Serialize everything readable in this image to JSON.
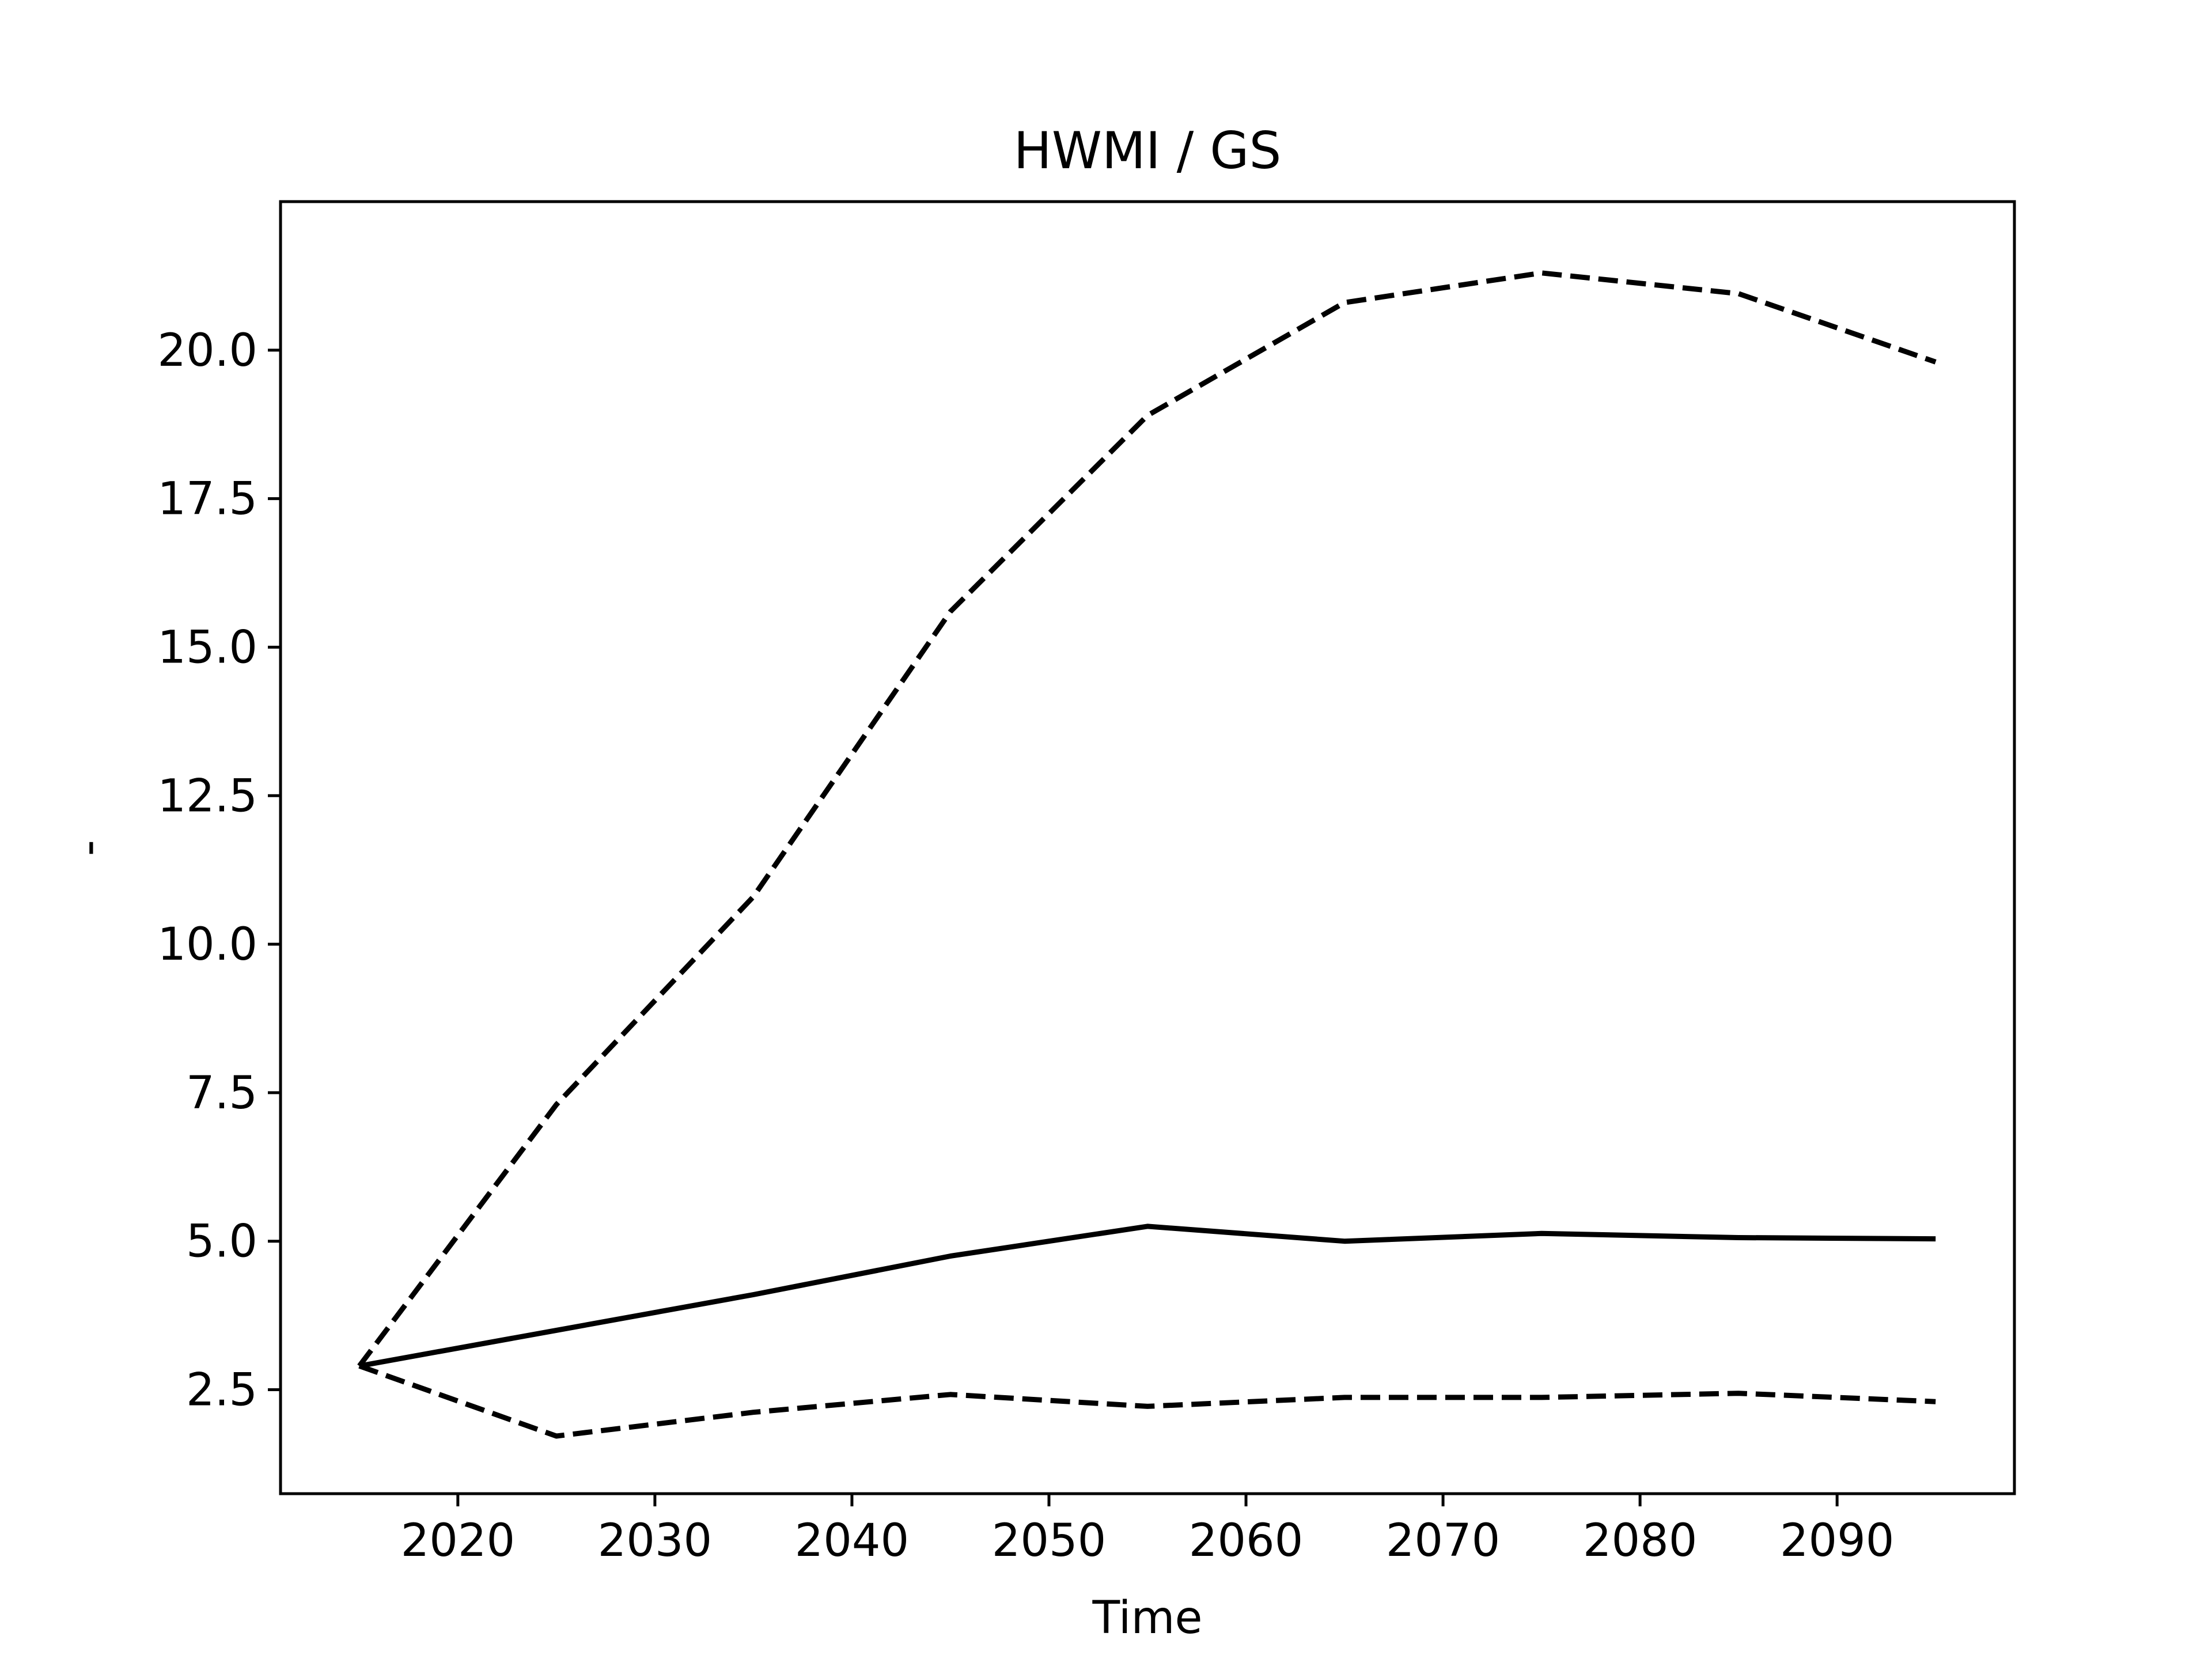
{
  "chart_data": {
    "type": "line",
    "title": "HWMI / GS",
    "xlabel": "Time",
    "ylabel": "-",
    "xlim": [
      2011,
      2099
    ],
    "ylim": [
      0.75,
      22.5
    ],
    "xticks": [
      2020,
      2030,
      2040,
      2050,
      2060,
      2070,
      2080,
      2090
    ],
    "yticks": [
      2.5,
      5.0,
      7.5,
      10.0,
      12.5,
      15.0,
      17.5,
      20.0
    ],
    "ytick_labels": [
      "2.5",
      "5.0",
      "7.5",
      "10.0",
      "12.5",
      "15.0",
      "17.5",
      "20.0"
    ],
    "grid": false,
    "legend": "none",
    "x": [
      2015,
      2025,
      2035,
      2045,
      2055,
      2065,
      2075,
      2085,
      2095
    ],
    "series": [
      {
        "style": "solid",
        "color": "#000000",
        "values": [
          2.9,
          3.5,
          4.1,
          4.75,
          5.25,
          5.0,
          5.13,
          5.06,
          5.04
        ]
      },
      {
        "style": "dashed",
        "color": "#000000",
        "values": [
          2.9,
          7.3,
          10.8,
          15.6,
          18.9,
          20.8,
          21.3,
          20.95,
          19.8
        ]
      },
      {
        "style": "dashed",
        "color": "#000000",
        "values": [
          2.9,
          1.72,
          2.12,
          2.42,
          2.22,
          2.37,
          2.37,
          2.44,
          2.3
        ]
      }
    ]
  }
}
